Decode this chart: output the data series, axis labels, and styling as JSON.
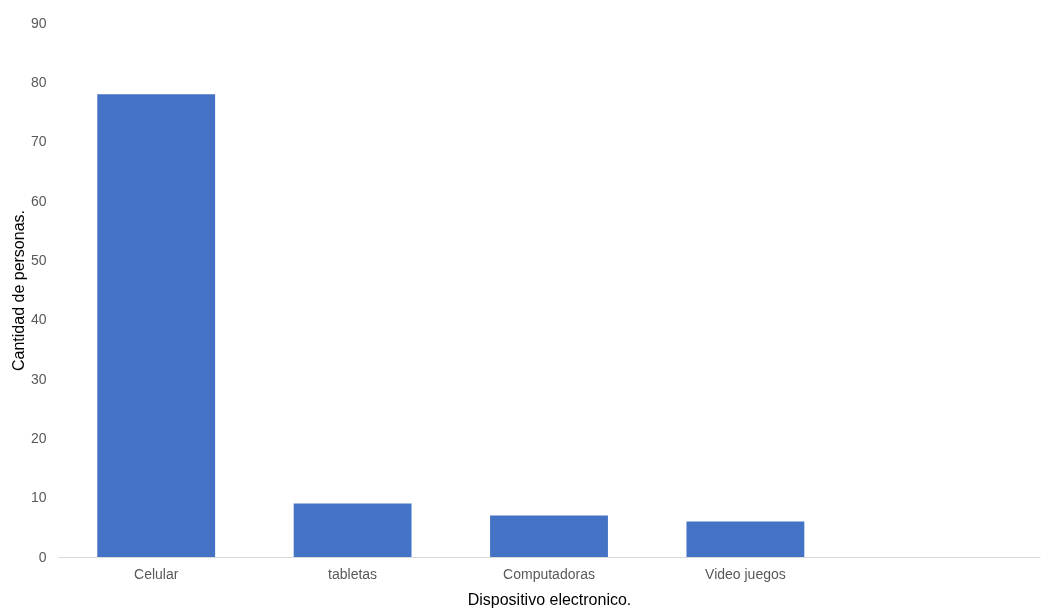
{
  "chart_data": {
    "type": "bar",
    "xlabel": "Dispositivo electronico.",
    "ylabel": "Cantidad de personas.",
    "categories": [
      "Celular",
      "tabletas",
      "Computadoras",
      "Video juegos",
      null
    ],
    "values": [
      78,
      9,
      7,
      6,
      null
    ],
    "color": "#4472c4",
    "ylim": [
      0,
      90
    ],
    "yticks": [
      0,
      10,
      20,
      30,
      40,
      50,
      60,
      70,
      80,
      90
    ],
    "grid": false
  }
}
